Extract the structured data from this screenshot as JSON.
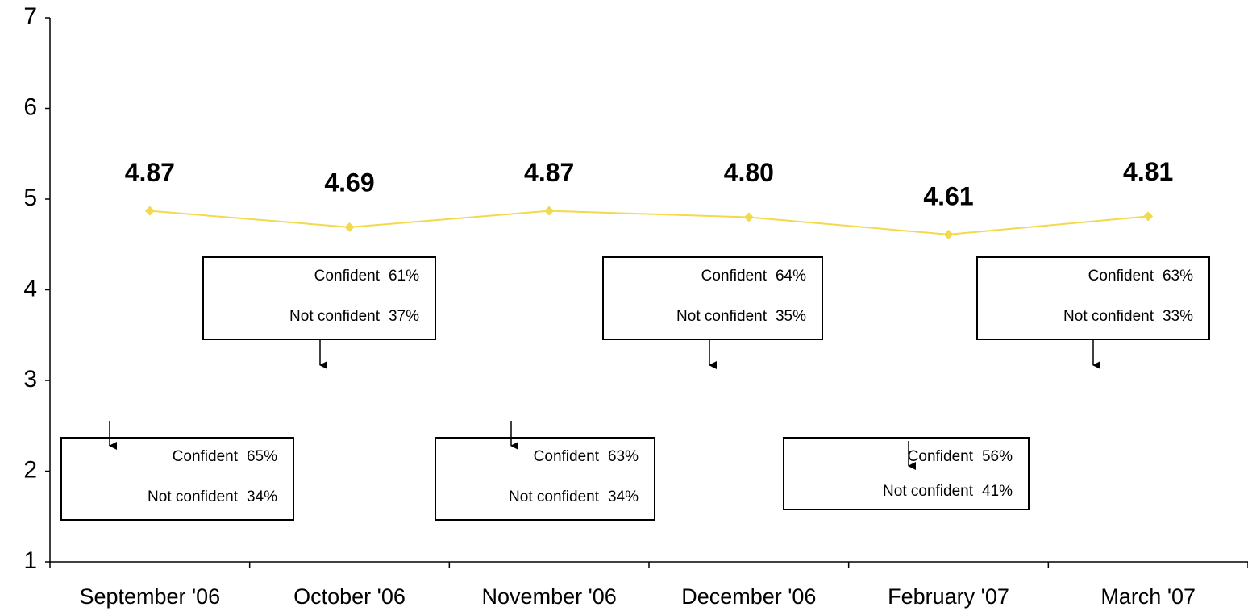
{
  "chart_data": {
    "type": "line",
    "categories": [
      "September '06",
      "October '06",
      "November '06",
      "December '06",
      "February '07",
      "March '07"
    ],
    "series": [
      {
        "color": "#f2d94e",
        "values": [
          4.87,
          4.69,
          4.87,
          4.8,
          4.61,
          4.81
        ]
      }
    ],
    "value_labels": [
      "4.87",
      "4.69",
      "4.87",
      "4.80",
      "4.61",
      "4.81"
    ],
    "ylim": [
      1,
      7
    ],
    "yticks": [
      1,
      2,
      3,
      4,
      5,
      6,
      7
    ],
    "annotations": [
      {
        "rows": [
          {
            "label": "Confident",
            "value": "65%"
          },
          {
            "label": "Not confident",
            "value": "34%"
          }
        ]
      },
      {
        "rows": [
          {
            "label": "Confident",
            "value": "61%"
          },
          {
            "label": "Not confident",
            "value": "37%"
          }
        ]
      },
      {
        "rows": [
          {
            "label": "Confident",
            "value": "63%"
          },
          {
            "label": "Not confident",
            "value": "34%"
          }
        ]
      },
      {
        "rows": [
          {
            "label": "Confident",
            "value": "64%"
          },
          {
            "label": "Not confident",
            "value": "35%"
          }
        ]
      },
      {
        "rows": [
          {
            "label": "Confident",
            "value": "56%"
          },
          {
            "label": "Not confident",
            "value": "41%"
          }
        ]
      },
      {
        "rows": [
          {
            "label": "Confident",
            "value": "63%"
          },
          {
            "label": "Not confident",
            "value": "33%"
          }
        ]
      }
    ]
  }
}
